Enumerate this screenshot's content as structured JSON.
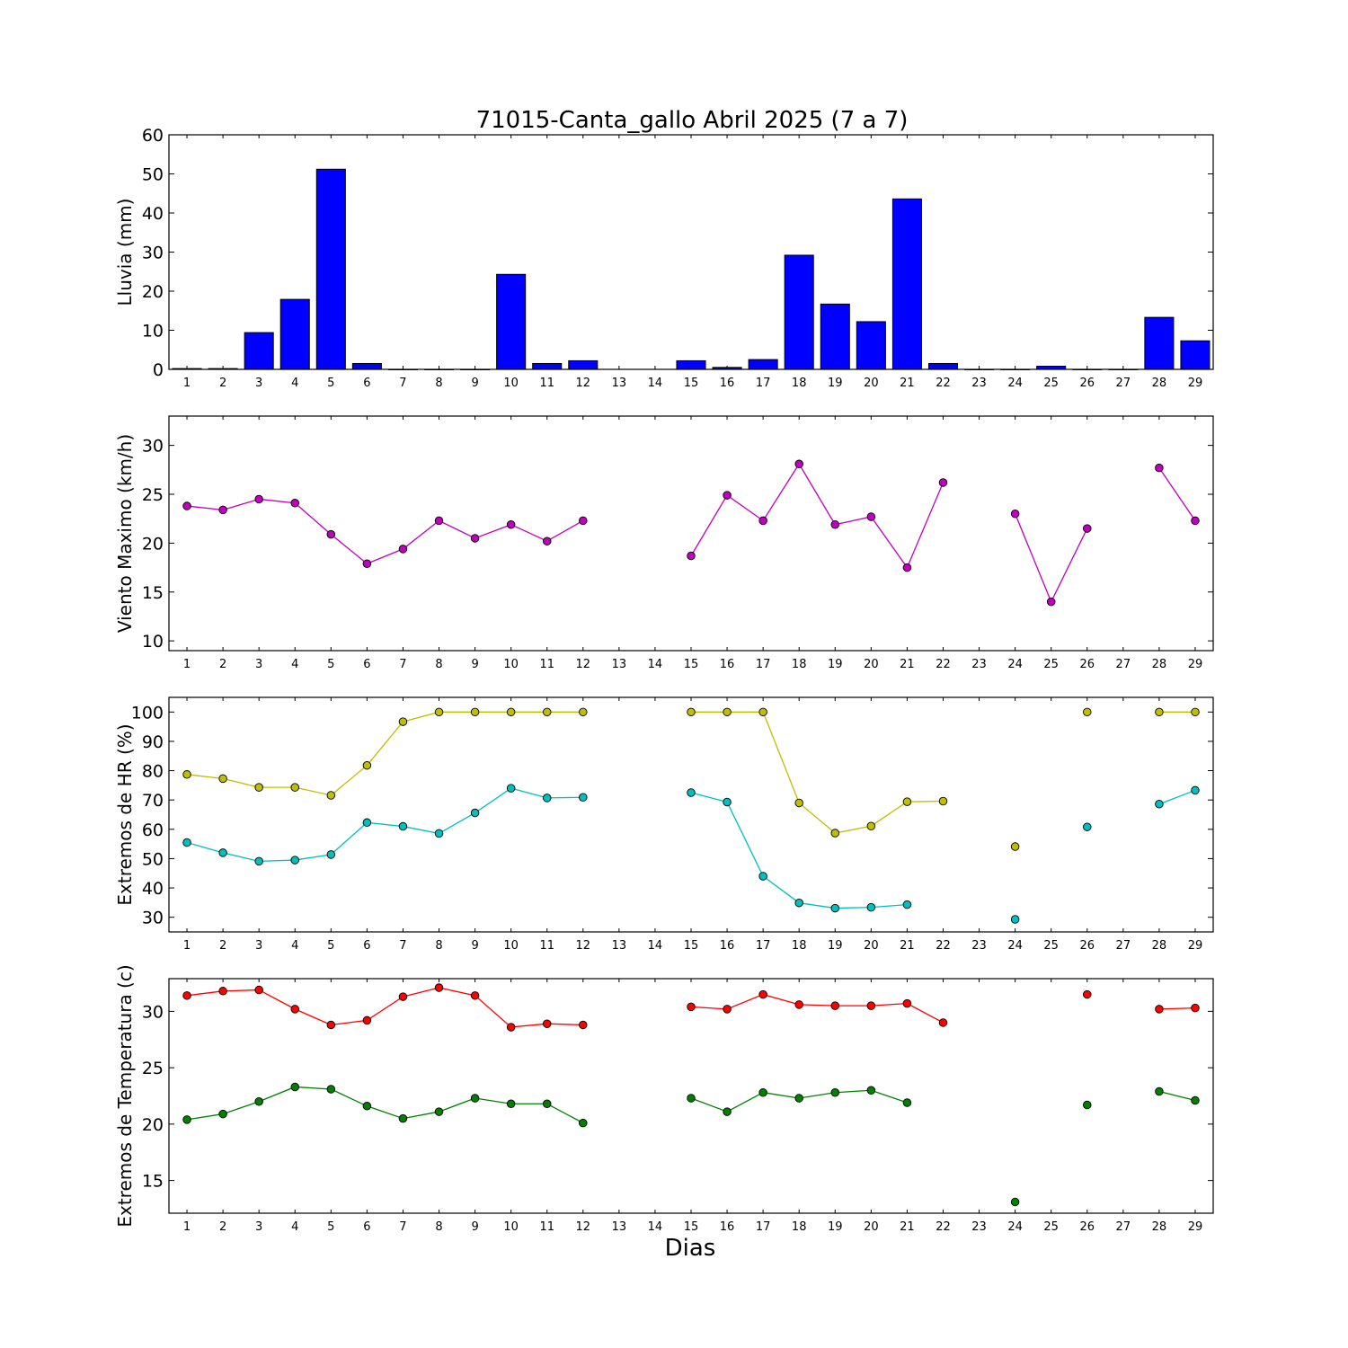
{
  "figure": {
    "title": "71015-Canta_gallo Abril 2025  (7 a 7)",
    "xlabel": "Dias"
  },
  "chart_data": [
    {
      "type": "bar",
      "ylabel": "Lluvia (mm)",
      "ylim": [
        0,
        60
      ],
      "yticks": [
        0,
        10,
        20,
        30,
        40,
        50,
        60
      ],
      "categories": [
        1,
        2,
        3,
        4,
        5,
        6,
        7,
        8,
        9,
        10,
        11,
        12,
        13,
        14,
        15,
        16,
        17,
        18,
        19,
        20,
        21,
        22,
        23,
        24,
        25,
        26,
        27,
        28,
        29
      ],
      "series": [
        {
          "color": "#0000ff",
          "values": [
            0.2,
            0.2,
            9.4,
            17.9,
            51.2,
            1.5,
            0,
            0,
            0,
            24.3,
            1.5,
            2.2,
            null,
            null,
            2.2,
            0.5,
            2.5,
            29.2,
            16.7,
            12.2,
            43.6,
            1.5,
            0,
            0,
            0.8,
            0,
            0,
            13.3,
            7.3
          ]
        }
      ]
    },
    {
      "type": "line",
      "ylabel": "Viento Maximo (km/h)",
      "ylim": [
        9,
        33
      ],
      "yticks": [
        10,
        15,
        20,
        25,
        30
      ],
      "categories": [
        1,
        2,
        3,
        4,
        5,
        6,
        7,
        8,
        9,
        10,
        11,
        12,
        13,
        14,
        15,
        16,
        17,
        18,
        19,
        20,
        21,
        22,
        23,
        24,
        25,
        26,
        27,
        28,
        29
      ],
      "series": [
        {
          "color": "#bf00bf",
          "values": [
            23.8,
            23.4,
            24.5,
            24.1,
            20.9,
            17.9,
            19.4,
            22.3,
            20.5,
            21.9,
            20.2,
            22.3,
            null,
            null,
            18.7,
            24.9,
            22.3,
            28.1,
            21.9,
            22.7,
            17.5,
            26.2,
            null,
            23.0,
            14.0,
            21.5,
            null,
            27.7,
            22.3
          ]
        }
      ]
    },
    {
      "type": "line",
      "ylabel": "Extremos de HR (%)",
      "ylim": [
        25,
        105
      ],
      "yticks": [
        30,
        40,
        50,
        60,
        70,
        80,
        90,
        100
      ],
      "categories": [
        1,
        2,
        3,
        4,
        5,
        6,
        7,
        8,
        9,
        10,
        11,
        12,
        13,
        14,
        15,
        16,
        17,
        18,
        19,
        20,
        21,
        22,
        23,
        24,
        25,
        26,
        27,
        28,
        29
      ],
      "series": [
        {
          "color": "#bfbf00",
          "values": [
            78.7,
            77.3,
            74.3,
            74.3,
            71.6,
            81.8,
            96.7,
            100,
            100,
            100,
            100,
            100,
            null,
            null,
            100,
            100,
            100,
            69.0,
            58.7,
            61.1,
            69.4,
            69.6,
            null,
            54.1,
            null,
            100,
            null,
            100,
            100
          ]
        },
        {
          "color": "#00bfbf",
          "values": [
            55.5,
            52.0,
            49.1,
            49.5,
            51.4,
            62.3,
            61.0,
            58.6,
            65.6,
            74.0,
            70.7,
            70.9,
            null,
            null,
            72.5,
            69.3,
            44.0,
            34.9,
            33.1,
            33.4,
            34.3,
            null,
            null,
            29.3,
            null,
            60.8,
            null,
            68.6,
            73.3
          ]
        }
      ]
    },
    {
      "type": "line",
      "ylabel": "Extremos de Temperatura (c)",
      "ylim": [
        12.1,
        32.9
      ],
      "yticks": [
        15,
        20,
        25,
        30
      ],
      "categories": [
        1,
        2,
        3,
        4,
        5,
        6,
        7,
        8,
        9,
        10,
        11,
        12,
        13,
        14,
        15,
        16,
        17,
        18,
        19,
        20,
        21,
        22,
        23,
        24,
        25,
        26,
        27,
        28,
        29
      ],
      "series": [
        {
          "color": "#ff0000",
          "values": [
            31.4,
            31.8,
            31.9,
            30.2,
            28.8,
            29.2,
            31.3,
            32.1,
            31.4,
            28.6,
            28.9,
            28.8,
            null,
            null,
            30.4,
            30.2,
            31.5,
            30.6,
            30.5,
            30.5,
            30.7,
            29.0,
            null,
            null,
            null,
            31.5,
            null,
            30.2,
            30.3
          ]
        },
        {
          "color": "#008000",
          "values": [
            20.4,
            20.9,
            22.0,
            23.3,
            23.1,
            21.6,
            20.5,
            21.1,
            22.3,
            21.8,
            21.8,
            20.1,
            null,
            null,
            22.3,
            21.1,
            22.8,
            22.3,
            22.8,
            23.0,
            21.9,
            null,
            null,
            13.1,
            null,
            21.7,
            null,
            22.9,
            22.1
          ]
        }
      ]
    }
  ]
}
